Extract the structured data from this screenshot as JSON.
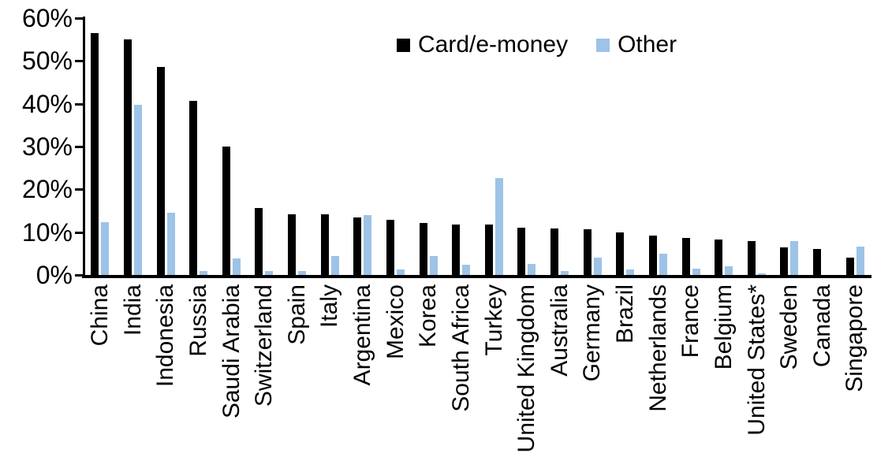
{
  "chart_data": {
    "type": "bar",
    "title": "",
    "xlabel": "",
    "ylabel": "",
    "ylim": [
      0,
      60
    ],
    "grid": false,
    "legend_position": "top-center",
    "y_ticks": [
      {
        "value": 0,
        "label": "0%"
      },
      {
        "value": 10,
        "label": "10%"
      },
      {
        "value": 20,
        "label": "20%"
      },
      {
        "value": 30,
        "label": "30%"
      },
      {
        "value": 40,
        "label": "40%"
      },
      {
        "value": 50,
        "label": "50%"
      },
      {
        "value": 60,
        "label": "60%"
      }
    ],
    "categories": [
      "China",
      "India",
      "Indonesia",
      "Russia",
      "Saudi Arabia",
      "Switzerland",
      "Spain",
      "Italy",
      "Argentina",
      "Mexico",
      "Korea",
      "South Africa",
      "Turkey",
      "United Kingdom",
      "Australia",
      "Germany",
      "Brazil",
      "Netherlands",
      "France",
      "Belgium",
      "United States*",
      "Sweden",
      "Canada",
      "Singapore"
    ],
    "series": [
      {
        "name": "Card/e-money",
        "color": "#000000",
        "values": [
          56.5,
          55.0,
          48.5,
          40.6,
          30.0,
          15.7,
          14.2,
          14.1,
          13.4,
          12.9,
          12.2,
          11.7,
          11.7,
          11.0,
          10.8,
          10.6,
          10.0,
          9.2,
          8.7,
          8.2,
          7.9,
          6.5,
          6.0,
          4.0
        ]
      },
      {
        "name": "Other",
        "color": "#9DC3E6",
        "values": [
          12.4,
          39.7,
          14.6,
          0.9,
          3.9,
          0.9,
          1.0,
          4.5,
          13.9,
          1.3,
          4.5,
          2.4,
          22.6,
          2.5,
          1.0,
          4.0,
          1.2,
          4.9,
          1.5,
          2.0,
          0.3,
          8.0,
          0.0,
          6.6
        ]
      }
    ]
  },
  "colors": {
    "background": "#FFFFFF",
    "axis": "#000000",
    "card_series": "#000000",
    "other_series": "#9DC3E6"
  }
}
